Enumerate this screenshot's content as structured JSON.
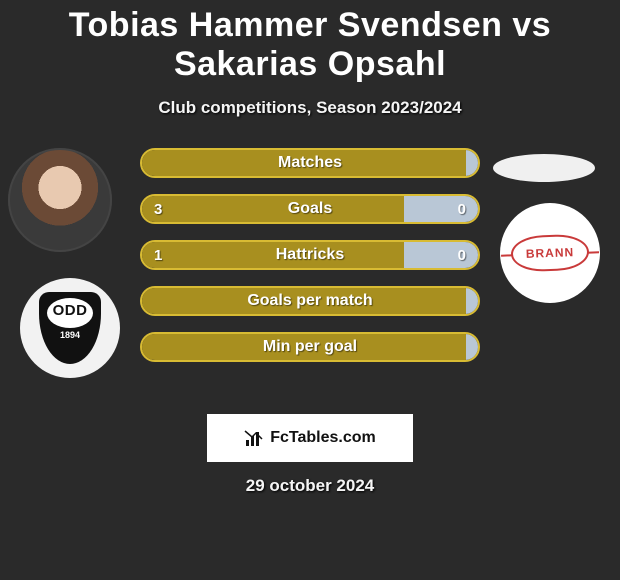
{
  "header": {
    "title": "Tobias Hammer Svendsen vs Sakarias Opsahl",
    "subtitle": "Club competitions, Season 2023/2024"
  },
  "player_left": {
    "club_short": "ODD",
    "club_year": "1894"
  },
  "player_right": {
    "club_short": "BRANN"
  },
  "colors": {
    "bar_left": "#a88f1f",
    "bar_right": "#b9c7d6",
    "bar_border": "#d8bb33",
    "title_text": "#ffffff",
    "brann": "#c93a3a"
  },
  "bars": [
    {
      "label": "Matches",
      "left_value": null,
      "right_value": null,
      "left_pct": 100,
      "right_pct": 0
    },
    {
      "label": "Goals",
      "left_value": "3",
      "right_value": "0",
      "left_pct": 78,
      "right_pct": 22
    },
    {
      "label": "Hattricks",
      "left_value": "1",
      "right_value": "0",
      "left_pct": 78,
      "right_pct": 22
    },
    {
      "label": "Goals per match",
      "left_value": null,
      "right_value": null,
      "left_pct": 100,
      "right_pct": 0
    },
    {
      "label": "Min per goal",
      "left_value": null,
      "right_value": null,
      "left_pct": 100,
      "right_pct": 0
    }
  ],
  "footer": {
    "site": "FcTables.com",
    "date": "29 october 2024"
  }
}
